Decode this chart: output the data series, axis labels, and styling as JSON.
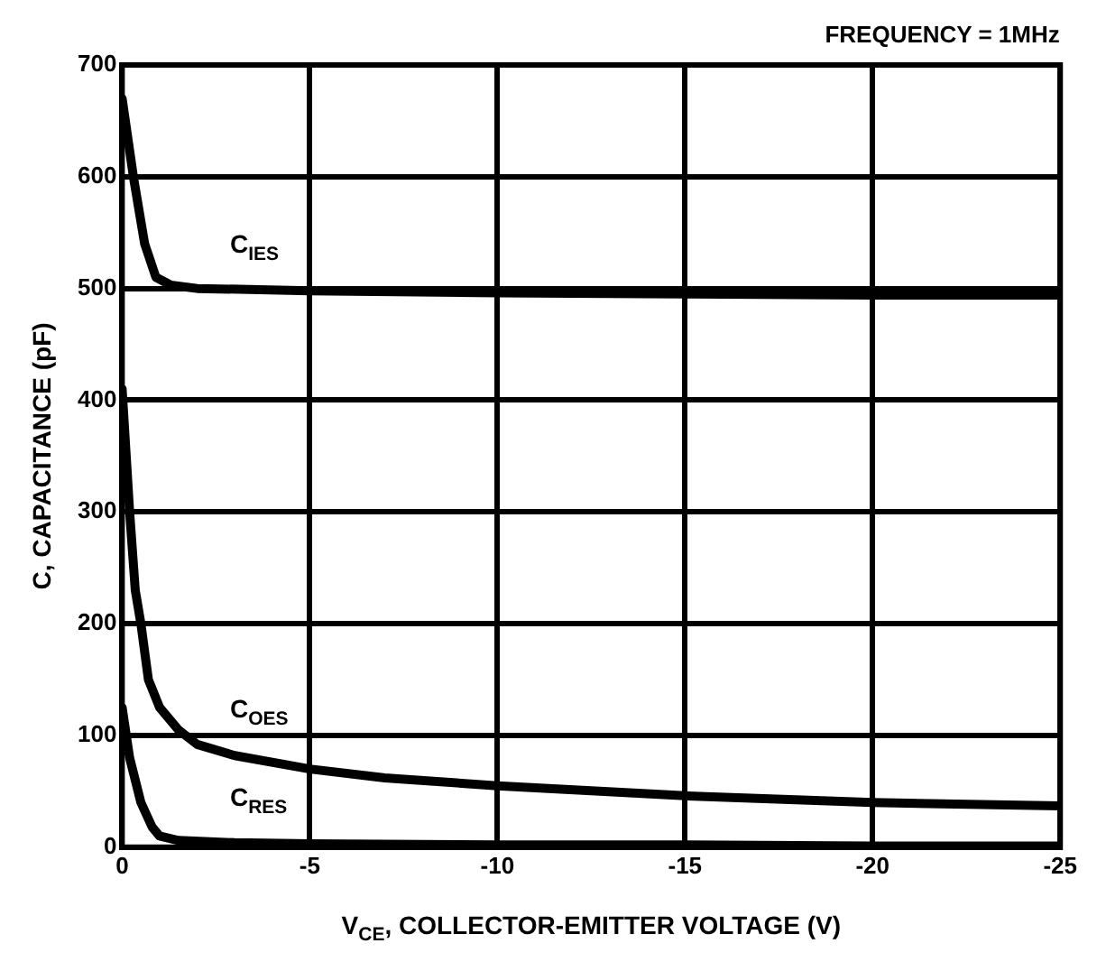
{
  "chart_data": {
    "type": "line",
    "subtitle": "FREQUENCY = 1MHz",
    "xlabel": "V$_{CE}$, COLLECTOR-EMITTER VOLTAGE (V)",
    "ylabel": "C, CAPACITANCE (pF)",
    "xlim": [
      0,
      -25
    ],
    "xticks": [
      0,
      -5,
      -10,
      -15,
      -20,
      -25
    ],
    "ylim": [
      0,
      700
    ],
    "yticks": [
      0,
      100,
      200,
      300,
      400,
      500,
      600,
      700
    ],
    "grid": true,
    "legend": false,
    "marker": "none",
    "line_style": "solid",
    "series": [
      {
        "name": "C$_{IES}$",
        "color": "#000000",
        "x": [
          0,
          -0.3,
          -0.6,
          -0.9,
          -1.3,
          -2,
          -5,
          -10,
          -15,
          -20,
          -25
        ],
        "values": [
          670,
          600,
          540,
          510,
          503,
          500,
          498,
          496,
          495,
          494,
          494
        ]
      },
      {
        "name": "C$_{OES}$",
        "color": "#000000",
        "x": [
          0,
          -0.2,
          -0.35,
          -0.5,
          -0.7,
          -1,
          -1.5,
          -2,
          -3,
          -5,
          -7,
          -10,
          -15,
          -20,
          -25
        ],
        "values": [
          410,
          300,
          230,
          200,
          150,
          125,
          105,
          92,
          82,
          70,
          62,
          55,
          46,
          40,
          37
        ]
      },
      {
        "name": "C$_{RES}$",
        "color": "#000000",
        "x": [
          0,
          -0.2,
          -0.5,
          -0.8,
          -1,
          -1.5,
          -3,
          -5,
          -10,
          -15,
          -20,
          -25
        ],
        "values": [
          125,
          80,
          40,
          18,
          10,
          6,
          4,
          3,
          2,
          2,
          1,
          1
        ]
      }
    ]
  }
}
